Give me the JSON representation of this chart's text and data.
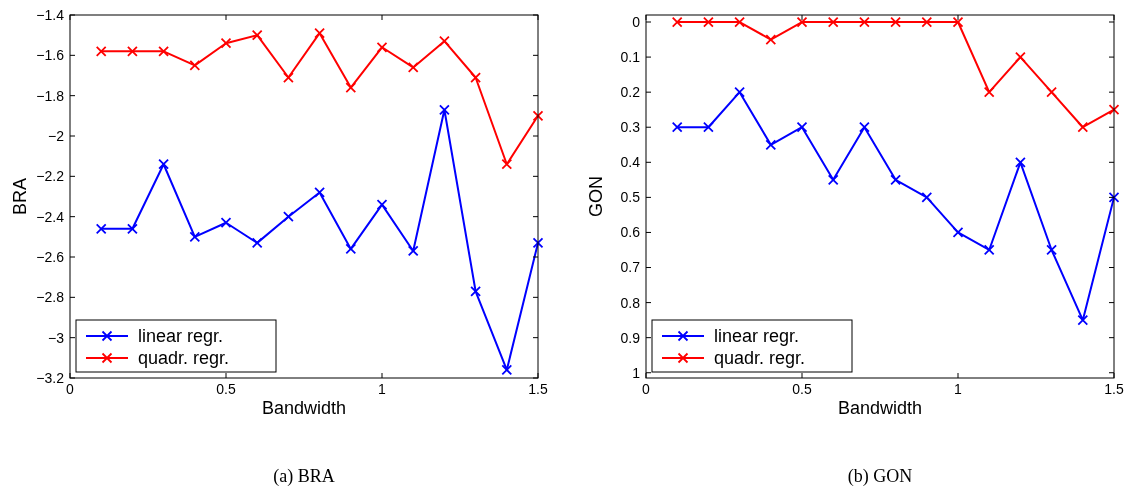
{
  "chart_data": [
    {
      "type": "line",
      "subtitle": "(a) BRA",
      "xlabel": "Bandwidth",
      "ylabel": "BRA",
      "x": [
        0.1,
        0.2,
        0.3,
        0.4,
        0.5,
        0.6,
        0.7,
        0.8,
        0.9,
        1.0,
        1.1,
        1.2,
        1.3,
        1.4,
        1.5
      ],
      "xlim": [
        0,
        1.5
      ],
      "xticks": [
        0,
        0.5,
        1,
        1.5
      ],
      "ylim": [
        -3.2,
        -1.4
      ],
      "yticks": [
        {
          "value": -3.2,
          "label": "−3.2"
        },
        {
          "value": -3,
          "label": "−3"
        },
        {
          "value": -2.8,
          "label": "−2.8"
        },
        {
          "value": -2.6,
          "label": "−2.6"
        },
        {
          "value": -2.4,
          "label": "−2.4"
        },
        {
          "value": -2.2,
          "label": "−2.2"
        },
        {
          "value": -2,
          "label": "−2"
        },
        {
          "value": -1.8,
          "label": "−1.8"
        },
        {
          "value": -1.6,
          "label": "−1.6"
        },
        {
          "value": -1.4,
          "label": "−1.4"
        }
      ],
      "marker": "cross",
      "legend": "bottom left",
      "series": [
        {
          "name": "linear regr.",
          "color": "#0000ff",
          "values": [
            -2.46,
            -2.46,
            -2.14,
            -2.5,
            -2.43,
            -2.53,
            -2.4,
            -2.28,
            -2.56,
            -2.34,
            -2.57,
            -1.87,
            -2.77,
            -3.16,
            -2.53
          ]
        },
        {
          "name": "quadr. regr.",
          "color": "#ff0000",
          "values": [
            -1.58,
            -1.58,
            -1.58,
            -1.65,
            -1.54,
            -1.5,
            -1.71,
            -1.49,
            -1.76,
            -1.56,
            -1.66,
            -1.53,
            -1.71,
            -2.14,
            -1.9
          ]
        }
      ]
    },
    {
      "type": "line",
      "subtitle": "(b) GON",
      "xlabel": "Bandwidth",
      "ylabel": "GON",
      "x": [
        0.1,
        0.2,
        0.3,
        0.4,
        0.5,
        0.6,
        0.7,
        0.8,
        0.9,
        1.0,
        1.1,
        1.2,
        1.3,
        1.4,
        1.5
      ],
      "xlim": [
        0,
        1.5
      ],
      "xticks": [
        0,
        0.5,
        1,
        1.5
      ],
      "ylim": [
        1.015,
        -0.02
      ],
      "yticks": [
        0,
        0.1,
        0.2,
        0.3,
        0.4,
        0.5,
        0.6,
        0.7,
        0.8,
        0.9,
        1
      ],
      "marker": "cross",
      "legend": "bottom left",
      "series": [
        {
          "name": "linear regr.",
          "color": "#0000ff",
          "values": [
            0.3,
            0.3,
            0.2,
            0.35,
            0.3,
            0.45,
            0.3,
            0.45,
            0.5,
            0.6,
            0.65,
            0.4,
            0.65,
            0.85,
            0.5
          ]
        },
        {
          "name": "quadr. regr.",
          "color": "#ff0000",
          "values": [
            0,
            0,
            0,
            0.05,
            0,
            0,
            0,
            0,
            0,
            0,
            0.2,
            0.1,
            0.2,
            0.3,
            0.25
          ]
        }
      ]
    }
  ]
}
